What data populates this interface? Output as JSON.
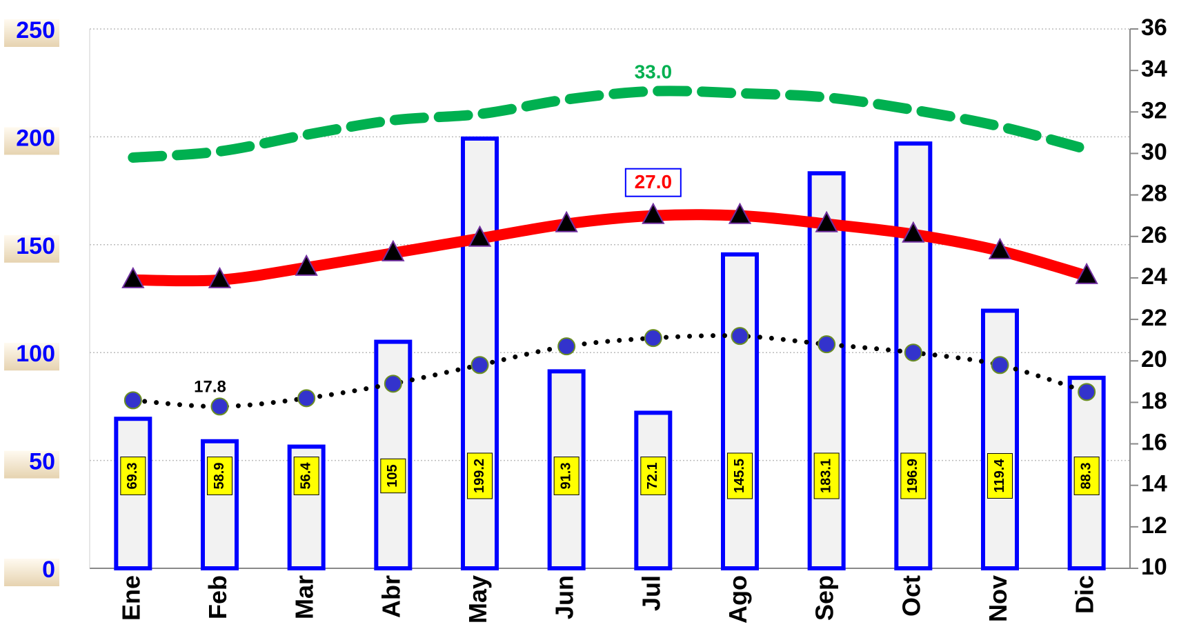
{
  "chart_data": {
    "type": "combo",
    "categories": [
      "Ene",
      "Feb",
      "Mar",
      "Abr",
      "May",
      "Jun",
      "Jul",
      "Ago",
      "Sep",
      "Oct",
      "Nov",
      "Dic"
    ],
    "ylim": [
      0,
      250
    ],
    "yticks": [
      0,
      50,
      100,
      150,
      200,
      250
    ],
    "y2lim": [
      10,
      36
    ],
    "y2ticks": [
      10,
      12,
      14,
      16,
      18,
      20,
      22,
      24,
      26,
      28,
      30,
      32,
      34,
      36
    ],
    "grid": true,
    "series": [
      {
        "type": "bar",
        "color": "#0000ff",
        "values": [
          69.3,
          58.9,
          56.4,
          105.0,
          199.2,
          91.3,
          72.1,
          145.5,
          183.1,
          196.9,
          119.4,
          88.3
        ]
      },
      {
        "type": "line",
        "axis": "y2",
        "style": "dashed",
        "color": "#00b050",
        "values": [
          29.8,
          30.1,
          30.9,
          31.6,
          31.9,
          32.6,
          33.0,
          32.9,
          32.7,
          32.1,
          31.3,
          30.2
        ],
        "value_labels": [
          null,
          null,
          null,
          null,
          null,
          null,
          "33.0",
          null,
          null,
          null,
          null,
          null
        ]
      },
      {
        "type": "line",
        "axis": "y2",
        "style": "solid",
        "color": "#ff0000",
        "marker": "triangle",
        "values": [
          23.9,
          23.9,
          24.5,
          25.2,
          25.9,
          26.6,
          27.0,
          27.0,
          26.6,
          26.1,
          25.3,
          24.1
        ],
        "value_labels": [
          null,
          null,
          null,
          null,
          null,
          null,
          "27.0",
          null,
          null,
          null,
          null,
          null
        ]
      },
      {
        "type": "line",
        "axis": "y2",
        "style": "dotted",
        "color": "#000000",
        "marker": "circle",
        "values": [
          18.1,
          17.8,
          18.2,
          18.9,
          19.8,
          20.7,
          21.1,
          21.2,
          20.8,
          20.4,
          19.8,
          18.5
        ],
        "value_labels": [
          null,
          "17.8",
          null,
          null,
          null,
          null,
          null,
          null,
          null,
          null,
          null,
          null
        ]
      }
    ]
  }
}
